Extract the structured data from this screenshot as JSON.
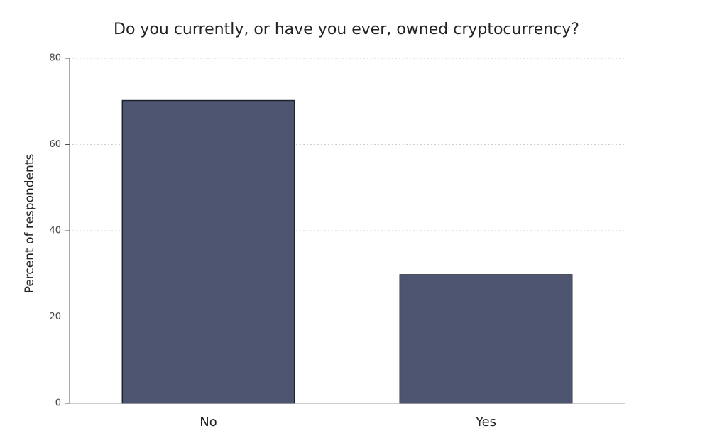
{
  "chart_data": {
    "type": "bar",
    "title": "Do you currently, or have you ever, owned cryptocurrency?",
    "y_label": "Percent of respondents",
    "categories": [
      "No",
      "Yes"
    ],
    "values": [
      70.2,
      29.8
    ],
    "color": "#4d5571",
    "ylim": [
      0,
      80
    ],
    "yticks": [
      0,
      20,
      40,
      60,
      80
    ],
    "grid": true
  }
}
